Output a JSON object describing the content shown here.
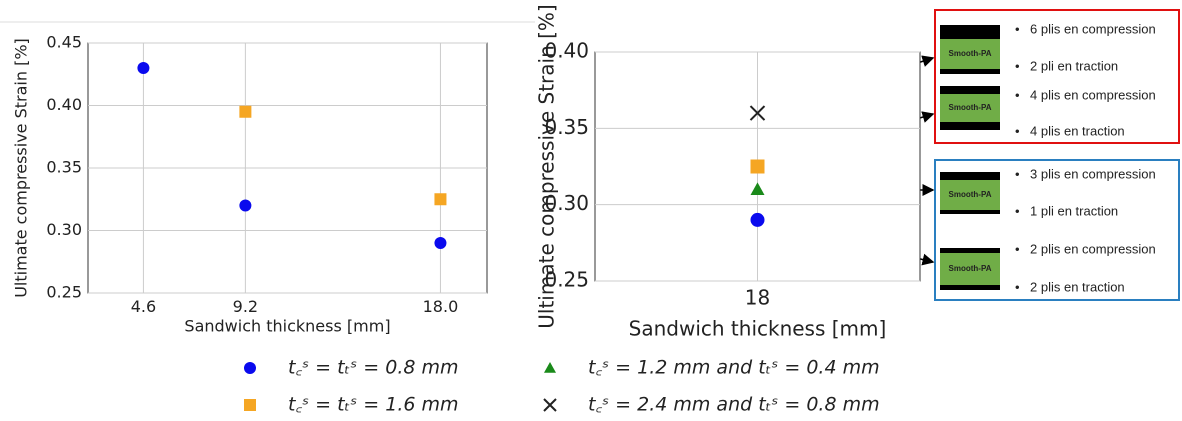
{
  "chart_data": [
    {
      "type": "scatter",
      "xlabel": "Sandwich thickness [mm]",
      "ylabel": "Ultimate compressive Strain [%]",
      "xlim": [
        2.1,
        20.1
      ],
      "ylim": [
        0.25,
        0.45
      ],
      "xticks": [
        4.6,
        9.2,
        {
          "value": 18,
          "label": "18.0"
        }
      ],
      "yticks": [
        0.25,
        {
          "value": 0.3,
          "label": "0.30"
        },
        0.35,
        {
          "value": 0.4,
          "label": "0.40"
        },
        0.45
      ],
      "grid": true,
      "series": [
        {
          "name": "t꜀ˢ = tₜˢ = 0.8 mm",
          "color": "#0a0aee",
          "marker": "circle",
          "x": [
            4.6,
            9.2,
            18
          ],
          "values": [
            0.43,
            0.32,
            0.29
          ]
        },
        {
          "name": "t꜀ˢ = tₜˢ = 1.6 mm",
          "color": "#f5a623",
          "marker": "square",
          "x": [
            9.2,
            18
          ],
          "values": [
            0.395,
            0.325
          ]
        }
      ]
    },
    {
      "type": "scatter",
      "xlabel": "Sandwich thickness [mm]",
      "ylabel": "Ultimate compressive Strain [%]",
      "xlim": [
        17,
        19
      ],
      "ylim": [
        0.25,
        0.4
      ],
      "xticks": [
        18
      ],
      "yticks": [
        0.25,
        {
          "value": 0.3,
          "label": "0.30"
        },
        0.35,
        {
          "value": 0.4,
          "label": "0.40"
        }
      ],
      "grid": true,
      "series": [
        {
          "name": "t꜀ˢ = tₜˢ = 0.8 mm",
          "color": "#0a0aee",
          "marker": "circle",
          "x": [
            18
          ],
          "values": [
            0.29
          ]
        },
        {
          "name": "t꜀ˢ = tₜˢ = 1.6 mm",
          "color": "#f5a623",
          "marker": "square",
          "x": [
            18
          ],
          "values": [
            0.325
          ]
        },
        {
          "name": "t꜀ˢ = 1.2 mm and tₜˢ = 0.4 mm",
          "color": "#1a8a1a",
          "marker": "triangle",
          "x": [
            18
          ],
          "values": [
            0.31
          ]
        },
        {
          "name": "t꜀ˢ = 2.4 mm and tₜˢ = 0.8 mm",
          "color": "#222222",
          "marker": "x",
          "x": [
            18
          ],
          "values": [
            0.36
          ]
        }
      ]
    }
  ],
  "annotations": [
    {
      "color": "#e01010",
      "items": [
        {
          "label": "Smooth-PA",
          "top": "6 plis en compression",
          "bottom": "2 pli en traction"
        },
        {
          "label": "Smooth-PA",
          "top": "4 plis en compression",
          "bottom": "4 plis en traction"
        }
      ]
    },
    {
      "color": "#2a7fc0",
      "items": [
        {
          "label": "Smooth-PA",
          "top": "3 plis en compression",
          "bottom": "1 pli en traction"
        },
        {
          "label": "Smooth-PA",
          "top": "2 plis en compression",
          "bottom": "2 plis en traction"
        }
      ]
    }
  ]
}
